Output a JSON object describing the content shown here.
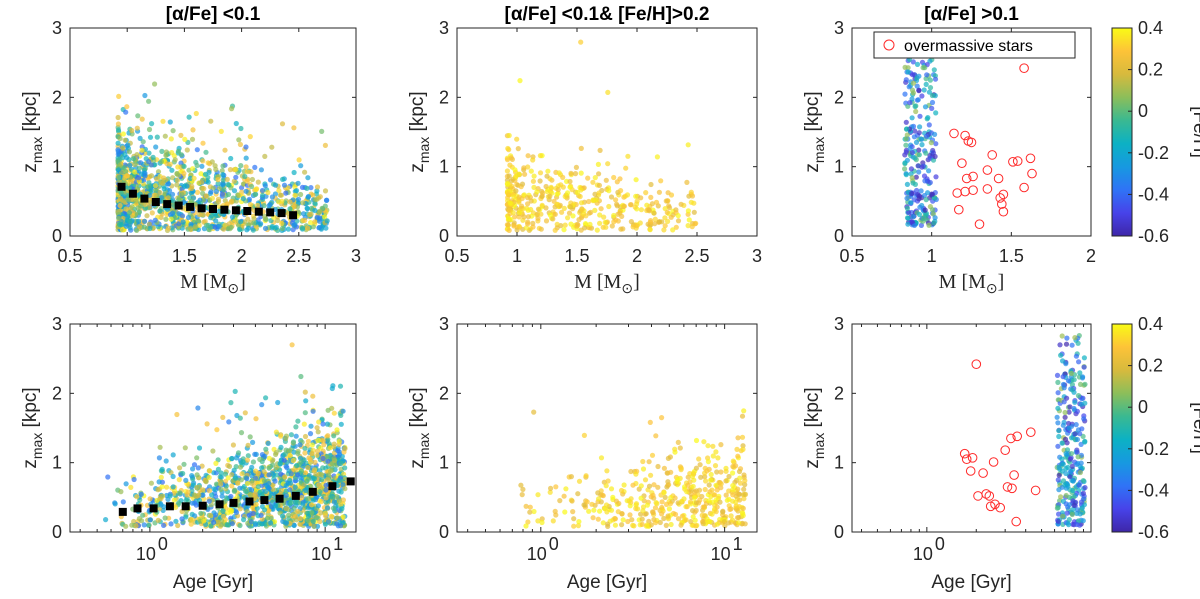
{
  "chart_data": [
    {
      "type": "scatter",
      "title": "[α/Fe] <0.1",
      "xlabel": "M [M⊙]",
      "ylabel": "z_max [kpc]",
      "xscale": "linear",
      "xlim": [
        0.5,
        3
      ],
      "ylim": [
        0,
        3
      ],
      "xticks": [
        "0.5",
        "1",
        "1.5",
        "2",
        "2.5",
        "3"
      ],
      "yticks": [
        "0",
        "1",
        "2",
        "3"
      ],
      "grid": false,
      "series": [
        {
          "kind": "cloud",
          "color_by": "[Fe/H]",
          "feh_range": [
            -0.4,
            0.4
          ],
          "x_range": [
            0.92,
            2.75
          ],
          "y_center": [
            0.65,
            0.32
          ],
          "n_points": 1400
        },
        {
          "kind": "binned-median",
          "marker": "square",
          "color": "#000000",
          "x": [
            0.95,
            1.05,
            1.15,
            1.25,
            1.35,
            1.45,
            1.55,
            1.65,
            1.75,
            1.85,
            1.95,
            2.05,
            2.15,
            2.25,
            2.35,
            2.45
          ],
          "y": [
            0.71,
            0.61,
            0.54,
            0.49,
            0.46,
            0.44,
            0.42,
            0.4,
            0.39,
            0.38,
            0.37,
            0.36,
            0.35,
            0.34,
            0.33,
            0.3
          ]
        }
      ]
    },
    {
      "type": "scatter",
      "title": "[α/Fe] <0.1& [Fe/H]>0.2",
      "xlabel": "M [M⊙]",
      "ylabel": "z_max [kpc]",
      "xscale": "linear",
      "xlim": [
        0.5,
        3
      ],
      "ylim": [
        0,
        3
      ],
      "xticks": [
        "0.5",
        "1",
        "1.5",
        "2",
        "2.5",
        "3"
      ],
      "yticks": [
        "0",
        "1",
        "2",
        "3"
      ],
      "grid": false,
      "series": [
        {
          "kind": "cloud",
          "color_by": "[Fe/H]",
          "feh_range": [
            0.2,
            0.4
          ],
          "x_range": [
            0.92,
            2.5
          ],
          "y_center": [
            0.55,
            0.3
          ],
          "n_points": 450
        }
      ]
    },
    {
      "type": "scatter",
      "title": "[α/Fe] >0.1",
      "xlabel": "M [M⊙]",
      "ylabel": "z_max [kpc]",
      "xscale": "linear",
      "xlim": [
        0.5,
        2
      ],
      "ylim": [
        0,
        3
      ],
      "xticks": [
        "0.5",
        "1",
        "1.5",
        "2"
      ],
      "yticks": [
        "0",
        "1",
        "2",
        "3"
      ],
      "grid": false,
      "legend": {
        "position": "top-right",
        "entries": [
          "overmassive stars"
        ]
      },
      "series": [
        {
          "kind": "cloud",
          "color_by": "[Fe/H]",
          "feh_range": [
            -0.6,
            0.1
          ],
          "x_range": [
            0.83,
            1.03
          ],
          "y_range": [
            0.15,
            2.55
          ],
          "n_points": 260
        },
        {
          "kind": "open-circles",
          "name": "overmassive stars",
          "color": "#ff2a2a",
          "x": [
            1.14,
            1.19,
            1.21,
            1.23,
            1.25,
            1.26,
            1.21,
            1.17,
            1.26,
            1.3,
            1.35,
            1.38,
            1.42,
            1.43,
            1.44,
            1.45,
            1.51,
            1.54,
            1.58,
            1.62,
            1.63,
            1.16,
            1.45,
            1.35,
            1.22,
            1.58
          ],
          "y": [
            1.48,
            1.05,
            1.45,
            1.37,
            1.35,
            0.86,
            0.64,
            0.38,
            0.66,
            0.17,
            0.68,
            1.17,
            0.83,
            0.55,
            0.46,
            0.35,
            1.07,
            1.08,
            2.42,
            1.12,
            0.9,
            0.62,
            0.6,
            0.95,
            0.83,
            0.7
          ]
        }
      ]
    },
    {
      "type": "scatter",
      "title": "",
      "xlabel": "Age [Gyr]",
      "ylabel": "z_max [kpc]",
      "xscale": "log",
      "xlim": [
        0.35,
        15
      ],
      "ylim": [
        0,
        3
      ],
      "xticks": [
        "10^0",
        "10^1"
      ],
      "yticks": [
        "0",
        "1",
        "2",
        "3"
      ],
      "grid": false,
      "series": [
        {
          "kind": "cloud",
          "color_by": "[Fe/H]",
          "feh_range": [
            -0.4,
            0.4
          ],
          "x_range": [
            0.5,
            13
          ],
          "y_center": [
            0.3,
            0.7
          ],
          "n_points": 1400
        },
        {
          "kind": "binned-median",
          "marker": "square",
          "color": "#000000",
          "x": [
            0.7,
            0.85,
            1.05,
            1.3,
            1.6,
            2.0,
            2.5,
            3.0,
            3.7,
            4.5,
            5.5,
            6.8,
            8.5,
            11,
            14
          ],
          "y": [
            0.29,
            0.34,
            0.34,
            0.37,
            0.37,
            0.38,
            0.4,
            0.42,
            0.44,
            0.46,
            0.48,
            0.52,
            0.58,
            0.66,
            0.73
          ]
        }
      ]
    },
    {
      "type": "scatter",
      "title": "",
      "xlabel": "Age [Gyr]",
      "ylabel": "z_max [kpc]",
      "xscale": "log",
      "xlim": [
        0.35,
        15
      ],
      "ylim": [
        0,
        3
      ],
      "xticks": [
        "10^0",
        "10^1"
      ],
      "yticks": [
        "0",
        "1",
        "2",
        "3"
      ],
      "grid": false,
      "series": [
        {
          "kind": "cloud",
          "color_by": "[Fe/H]",
          "feh_range": [
            0.2,
            0.4
          ],
          "x_range": [
            0.6,
            13
          ],
          "y_center": [
            0.3,
            0.55
          ],
          "n_points": 450
        }
      ]
    },
    {
      "type": "scatter",
      "title": "",
      "xlabel": "Age [Gyr]",
      "ylabel": "z_max [kpc]",
      "xscale": "log",
      "xlim": [
        0.35,
        10
      ],
      "ylim": [
        0,
        3
      ],
      "xticks": [
        "10^0"
      ],
      "yticks": [
        "0",
        "1",
        "2",
        "3"
      ],
      "grid": false,
      "series": [
        {
          "kind": "cloud",
          "color_by": "[Fe/H]",
          "feh_range": [
            -0.6,
            0.1
          ],
          "x_range": [
            6.2,
            9.2
          ],
          "y_range": [
            0.1,
            2.85
          ],
          "n_points": 280
        },
        {
          "kind": "open-circles",
          "name": "overmassive stars",
          "color": "#ff2a2a",
          "x": [
            1.7,
            1.75,
            1.9,
            2.0,
            2.2,
            2.3,
            2.4,
            2.6,
            2.8,
            3.0,
            3.1,
            3.3,
            3.4,
            3.5,
            4.3,
            4.6,
            1.85,
            2.55,
            2.45,
            3.25,
            3.55,
            2.05
          ],
          "y": [
            1.13,
            1.05,
            1.07,
            2.42,
            0.85,
            0.55,
            0.52,
            0.4,
            0.35,
            1.18,
            0.65,
            0.63,
            0.82,
            0.15,
            1.44,
            0.6,
            0.88,
            1.01,
            0.37,
            1.35,
            1.38,
            0.52
          ]
        }
      ]
    }
  ],
  "colorbars": [
    {
      "label": "[Fe/H]",
      "range": [
        -0.6,
        0.4
      ],
      "ticks": [
        "0.4",
        "0.2",
        "0",
        "-0.2",
        "-0.4",
        "-0.6"
      ],
      "colormap": "parula"
    },
    {
      "label": "[Fe/H]",
      "range": [
        -0.6,
        0.4
      ],
      "ticks": [
        "0.4",
        "0.2",
        "0",
        "-0.2",
        "-0.4",
        "-0.6"
      ],
      "colormap": "parula"
    }
  ],
  "colors": {
    "axis": "#262626",
    "median_marker": "#000000",
    "overmassive": "#ff2a2a",
    "parula_stops": [
      "#3e26a8",
      "#4743e9",
      "#2f73f6",
      "#1799e0",
      "#0cb1c4",
      "#3ab991",
      "#8cbe5a",
      "#d7ba3d",
      "#fdc338",
      "#f9fb15"
    ]
  }
}
